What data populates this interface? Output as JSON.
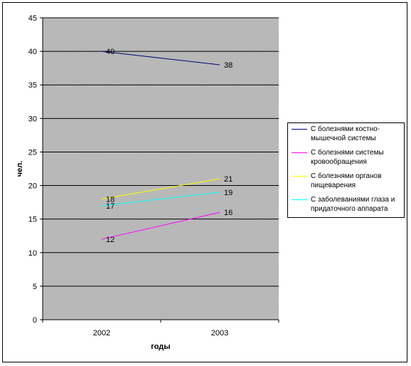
{
  "chart_data": {
    "type": "line",
    "xlabel": "годы",
    "ylabel": "чел.",
    "categories": [
      "2002",
      "2003"
    ],
    "ylim": [
      0,
      45
    ],
    "yticks": [
      0,
      5,
      10,
      15,
      20,
      25,
      30,
      35,
      40,
      45
    ],
    "grid": true,
    "legend_position": "right",
    "series": [
      {
        "name": "С болезнями костно-мышечной системы",
        "values": [
          40,
          38
        ],
        "color": "#000080"
      },
      {
        "name": "С болезнями системы кровообращения",
        "values": [
          12,
          16
        ],
        "color": "#ff00ff"
      },
      {
        "name": "С болезнями органов пищеварения",
        "values": [
          18,
          21
        ],
        "color": "#ffff00"
      },
      {
        "name": "С заболеваниями глаза и придаточного аппарата",
        "values": [
          17,
          19
        ],
        "color": "#00ffff"
      }
    ],
    "data_labels": [
      [
        "40",
        "38"
      ],
      [
        "12",
        "16"
      ],
      [
        "18",
        "21"
      ],
      [
        "17",
        "19"
      ]
    ]
  }
}
